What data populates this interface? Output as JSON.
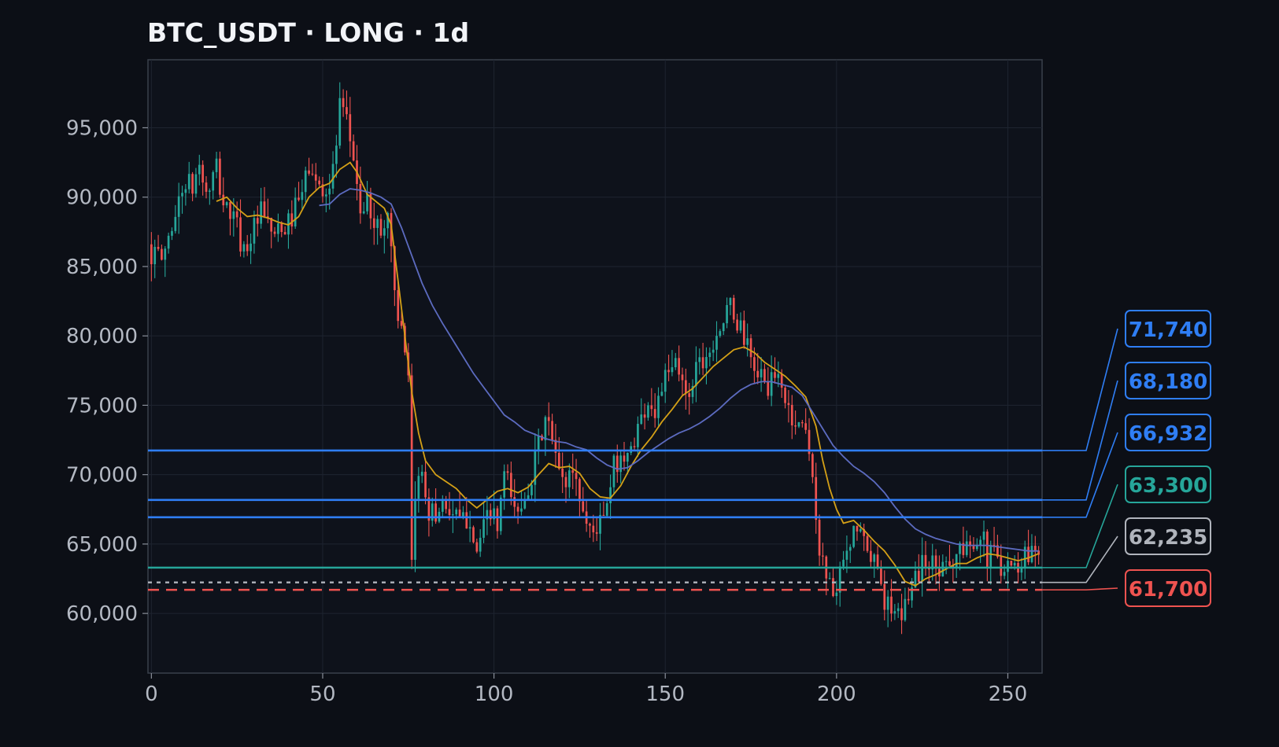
{
  "chart_data": {
    "type": "candlestick",
    "title": "BTC_USDT · LONG · 1d",
    "xlabel": "",
    "ylabel": "",
    "xlim": [
      -1,
      260
    ],
    "ylim": [
      55700,
      99900
    ],
    "x_ticks": [
      0,
      50,
      100,
      150,
      200,
      250
    ],
    "y_ticks": [
      60000,
      65000,
      70000,
      75000,
      80000,
      85000,
      90000,
      95000
    ],
    "grid": true,
    "colors": {
      "background": "#0c0f16",
      "plot_background": "#0e121b",
      "grid": "#1e2430",
      "axis": "#3a404b",
      "up": "#26a69a",
      "down": "#ef5350",
      "ma_fast": "#d4a017",
      "ma_slow": "#5c6bc0"
    },
    "series": [
      {
        "kind": "close_path",
        "points": [
          [
            0,
            86000
          ],
          [
            3,
            85500
          ],
          [
            6,
            88000
          ],
          [
            10,
            91200
          ],
          [
            12,
            90500
          ],
          [
            14,
            92500
          ],
          [
            16,
            90000
          ],
          [
            19,
            92000
          ],
          [
            21,
            89500
          ],
          [
            24,
            88500
          ],
          [
            27,
            86200
          ],
          [
            29,
            87200
          ],
          [
            32,
            88800
          ],
          [
            35,
            87500
          ],
          [
            38,
            87200
          ],
          [
            41,
            88600
          ],
          [
            44,
            90200
          ],
          [
            46,
            92300
          ],
          [
            48,
            90800
          ],
          [
            50,
            90800
          ],
          [
            52,
            90500
          ],
          [
            54,
            93800
          ],
          [
            55,
            96400
          ],
          [
            57,
            95200
          ],
          [
            59,
            93000
          ],
          [
            61,
            89000
          ],
          [
            63,
            89400
          ],
          [
            65,
            88500
          ],
          [
            67,
            87200
          ],
          [
            69,
            89000
          ],
          [
            71,
            83500
          ],
          [
            73,
            80000
          ],
          [
            75,
            76500
          ],
          [
            76,
            63000
          ],
          [
            77,
            68500
          ],
          [
            79,
            70500
          ],
          [
            81,
            67500
          ],
          [
            83,
            67000
          ],
          [
            85,
            68200
          ],
          [
            87,
            67500
          ],
          [
            90,
            66500
          ],
          [
            93,
            67000
          ],
          [
            95,
            64500
          ],
          [
            97,
            66000
          ],
          [
            99,
            67500
          ],
          [
            101,
            66000
          ],
          [
            103,
            70000
          ],
          [
            105,
            68500
          ],
          [
            107,
            67000
          ],
          [
            109,
            68800
          ],
          [
            111,
            70000
          ],
          [
            113,
            72000
          ],
          [
            115,
            74000
          ],
          [
            117,
            72500
          ],
          [
            119,
            70000
          ],
          [
            121,
            69500
          ],
          [
            123,
            70500
          ],
          [
            125,
            68500
          ],
          [
            127,
            66500
          ],
          [
            129,
            66000
          ],
          [
            131,
            66500
          ],
          [
            133,
            67500
          ],
          [
            135,
            70500
          ],
          [
            137,
            71500
          ],
          [
            139,
            71000
          ],
          [
            141,
            72800
          ],
          [
            143,
            74000
          ],
          [
            145,
            75500
          ],
          [
            147,
            74500
          ],
          [
            149,
            76500
          ],
          [
            151,
            77000
          ],
          [
            153,
            78000
          ],
          [
            155,
            76500
          ],
          [
            157,
            76000
          ],
          [
            159,
            78000
          ],
          [
            161,
            78500
          ],
          [
            163,
            79000
          ],
          [
            165,
            80500
          ],
          [
            167,
            81000
          ],
          [
            169,
            82000
          ],
          [
            171,
            81000
          ],
          [
            173,
            80000
          ],
          [
            175,
            78000
          ],
          [
            177,
            77500
          ],
          [
            179,
            76500
          ],
          [
            181,
            76500
          ],
          [
            183,
            77000
          ],
          [
            185,
            75500
          ],
          [
            187,
            74000
          ],
          [
            189,
            73500
          ],
          [
            191,
            73800
          ],
          [
            193,
            70000
          ],
          [
            194,
            66000
          ],
          [
            196,
            64000
          ],
          [
            198,
            62000
          ],
          [
            200,
            61500
          ],
          [
            202,
            63500
          ],
          [
            204,
            64500
          ],
          [
            206,
            66500
          ],
          [
            208,
            65000
          ],
          [
            210,
            63500
          ],
          [
            212,
            64000
          ],
          [
            214,
            61000
          ],
          [
            216,
            60000
          ],
          [
            218,
            59500
          ],
          [
            220,
            60500
          ],
          [
            222,
            62500
          ],
          [
            224,
            63000
          ],
          [
            226,
            64000
          ],
          [
            228,
            63500
          ],
          [
            230,
            63000
          ],
          [
            232,
            64500
          ],
          [
            234,
            63500
          ],
          [
            236,
            64800
          ],
          [
            238,
            64500
          ],
          [
            240,
            65500
          ],
          [
            242,
            66000
          ],
          [
            244,
            64000
          ],
          [
            246,
            64500
          ],
          [
            248,
            63500
          ],
          [
            250,
            64000
          ],
          [
            252,
            63200
          ],
          [
            254,
            64000
          ],
          [
            256,
            64500
          ],
          [
            259,
            65000
          ]
        ]
      },
      {
        "name": "",
        "kind": "ma",
        "role": "fast",
        "points": [
          [
            19,
            89700
          ],
          [
            22,
            90000
          ],
          [
            25,
            89200
          ],
          [
            28,
            88600
          ],
          [
            31,
            88700
          ],
          [
            34,
            88500
          ],
          [
            37,
            88200
          ],
          [
            40,
            88000
          ],
          [
            43,
            88600
          ],
          [
            46,
            90000
          ],
          [
            49,
            90700
          ],
          [
            52,
            91000
          ],
          [
            55,
            92000
          ],
          [
            58,
            92500
          ],
          [
            60,
            91800
          ],
          [
            63,
            90200
          ],
          [
            66,
            89600
          ],
          [
            68,
            89200
          ],
          [
            70,
            88000
          ],
          [
            72,
            84000
          ],
          [
            74,
            80000
          ],
          [
            76,
            76000
          ],
          [
            78,
            73000
          ],
          [
            80,
            71000
          ],
          [
            83,
            70000
          ],
          [
            86,
            69500
          ],
          [
            89,
            69000
          ],
          [
            92,
            68200
          ],
          [
            95,
            67600
          ],
          [
            98,
            68200
          ],
          [
            101,
            68800
          ],
          [
            104,
            69000
          ],
          [
            107,
            68700
          ],
          [
            110,
            69100
          ],
          [
            113,
            70000
          ],
          [
            116,
            70800
          ],
          [
            119,
            70500
          ],
          [
            122,
            70600
          ],
          [
            125,
            70100
          ],
          [
            128,
            69000
          ],
          [
            131,
            68400
          ],
          [
            134,
            68300
          ],
          [
            137,
            69200
          ],
          [
            140,
            70600
          ],
          [
            143,
            71800
          ],
          [
            146,
            72700
          ],
          [
            149,
            73800
          ],
          [
            152,
            74700
          ],
          [
            155,
            75700
          ],
          [
            158,
            76200
          ],
          [
            161,
            77000
          ],
          [
            164,
            77800
          ],
          [
            167,
            78400
          ],
          [
            170,
            79000
          ],
          [
            173,
            79200
          ],
          [
            176,
            78800
          ],
          [
            179,
            78100
          ],
          [
            182,
            77600
          ],
          [
            185,
            77100
          ],
          [
            188,
            76400
          ],
          [
            191,
            75600
          ],
          [
            194,
            73500
          ],
          [
            196,
            71000
          ],
          [
            198,
            69000
          ],
          [
            200,
            67500
          ],
          [
            202,
            66500
          ],
          [
            205,
            66700
          ],
          [
            208,
            66000
          ],
          [
            211,
            65200
          ],
          [
            214,
            64500
          ],
          [
            217,
            63500
          ],
          [
            220,
            62300
          ],
          [
            223,
            62000
          ],
          [
            226,
            62500
          ],
          [
            229,
            62800
          ],
          [
            232,
            63200
          ],
          [
            235,
            63600
          ],
          [
            238,
            63600
          ],
          [
            241,
            64000
          ],
          [
            244,
            64300
          ],
          [
            247,
            64200
          ],
          [
            250,
            64000
          ],
          [
            253,
            63800
          ],
          [
            256,
            64000
          ],
          [
            259,
            64300
          ]
        ]
      },
      {
        "name": "",
        "kind": "ma",
        "role": "slow",
        "points": [
          [
            49,
            89400
          ],
          [
            52,
            89500
          ],
          [
            55,
            90200
          ],
          [
            58,
            90600
          ],
          [
            61,
            90500
          ],
          [
            64,
            90300
          ],
          [
            67,
            90000
          ],
          [
            70,
            89500
          ],
          [
            73,
            87800
          ],
          [
            76,
            85800
          ],
          [
            79,
            83800
          ],
          [
            82,
            82200
          ],
          [
            85,
            80900
          ],
          [
            88,
            79700
          ],
          [
            91,
            78500
          ],
          [
            94,
            77300
          ],
          [
            97,
            76300
          ],
          [
            100,
            75300
          ],
          [
            103,
            74300
          ],
          [
            106,
            73800
          ],
          [
            109,
            73200
          ],
          [
            112,
            72900
          ],
          [
            115,
            72600
          ],
          [
            118,
            72400
          ],
          [
            121,
            72300
          ],
          [
            124,
            72000
          ],
          [
            127,
            71800
          ],
          [
            130,
            71200
          ],
          [
            133,
            70700
          ],
          [
            136,
            70400
          ],
          [
            139,
            70500
          ],
          [
            142,
            71000
          ],
          [
            145,
            71600
          ],
          [
            148,
            72100
          ],
          [
            151,
            72600
          ],
          [
            154,
            73000
          ],
          [
            157,
            73300
          ],
          [
            160,
            73700
          ],
          [
            163,
            74200
          ],
          [
            166,
            74800
          ],
          [
            169,
            75500
          ],
          [
            172,
            76100
          ],
          [
            175,
            76500
          ],
          [
            178,
            76700
          ],
          [
            181,
            76700
          ],
          [
            184,
            76500
          ],
          [
            187,
            76300
          ],
          [
            190,
            75700
          ],
          [
            193,
            74500
          ],
          [
            196,
            73300
          ],
          [
            199,
            72100
          ],
          [
            202,
            71300
          ],
          [
            205,
            70600
          ],
          [
            208,
            70100
          ],
          [
            211,
            69500
          ],
          [
            214,
            68700
          ],
          [
            217,
            67700
          ],
          [
            220,
            66800
          ],
          [
            223,
            66100
          ],
          [
            226,
            65700
          ],
          [
            229,
            65400
          ],
          [
            232,
            65200
          ],
          [
            235,
            65000
          ],
          [
            238,
            64900
          ],
          [
            241,
            64900
          ],
          [
            244,
            64900
          ],
          [
            247,
            64800
          ],
          [
            250,
            64700
          ],
          [
            253,
            64600
          ],
          [
            256,
            64500
          ],
          [
            259,
            64500
          ]
        ]
      }
    ],
    "levels": [
      {
        "value": 71740,
        "label": "71,740",
        "color": "#2f7ef5",
        "style": "solid"
      },
      {
        "value": 68180,
        "label": "68,180",
        "color": "#2f7ef5",
        "style": "solid"
      },
      {
        "value": 66932,
        "label": "66,932",
        "color": "#2f7ef5",
        "style": "solid"
      },
      {
        "value": 63300,
        "label": "63,300",
        "color": "#26a69a",
        "style": "solid"
      },
      {
        "value": 62235,
        "label": "62,235",
        "color": "#b0b4bc",
        "style": "dotted"
      },
      {
        "value": 61700,
        "label": "61,700",
        "color": "#ef5350",
        "style": "dashed"
      }
    ]
  }
}
